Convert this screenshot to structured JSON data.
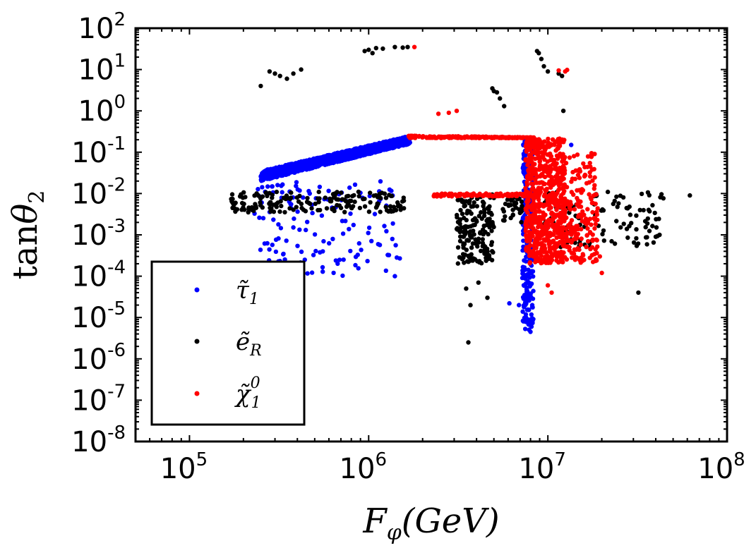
{
  "chart_data": {
    "type": "scatter",
    "title": "",
    "xlabel": "F_φ(GeV)",
    "ylabel": "tanθ_2",
    "xscale": "log",
    "yscale": "log",
    "xlim": [
      50000,
      100000000
    ],
    "ylim": [
      1e-08,
      100
    ],
    "x_ticks": [
      {
        "base": "10",
        "exp": "5",
        "value": 100000
      },
      {
        "base": "10",
        "exp": "6",
        "value": 1000000
      },
      {
        "base": "10",
        "exp": "7",
        "value": 10000000
      },
      {
        "base": "10",
        "exp": "8",
        "value": 100000000
      }
    ],
    "y_ticks": [
      {
        "base": "10",
        "exp": "2",
        "value": 100
      },
      {
        "base": "10",
        "exp": "1",
        "value": 10
      },
      {
        "base": "10",
        "exp": "0",
        "value": 1
      },
      {
        "base": "10",
        "exp": "-1",
        "value": 0.1
      },
      {
        "base": "10",
        "exp": "-2",
        "value": 0.01
      },
      {
        "base": "10",
        "exp": "-3",
        "value": 0.001
      },
      {
        "base": "10",
        "exp": "-4",
        "value": 0.0001
      },
      {
        "base": "10",
        "exp": "-5",
        "value": 1e-05
      },
      {
        "base": "10",
        "exp": "-6",
        "value": 1e-06
      },
      {
        "base": "10",
        "exp": "-7",
        "value": 1e-07
      },
      {
        "base": "10",
        "exp": "-8",
        "value": 1e-08
      }
    ],
    "legend_position": "lower-left",
    "series": [
      {
        "name": "τ̃1",
        "legend": {
          "base": "τ̃",
          "sub": "1",
          "sup": ""
        },
        "color": "#0000ff",
        "clusters": [
          {
            "x_range": [
              250000,
              1700000
            ],
            "y_band": [
              [
                0.02,
                0.035
              ],
              [
                0.16,
                0.25
              ]
            ],
            "count": 1500
          },
          {
            "x_range": [
              230000,
              1500000
            ],
            "y_range": [
              0.0001,
              0.02
            ],
            "count": 140
          },
          {
            "x_range": [
              7200000,
              8300000
            ],
            "y_range": [
              5e-06,
              0.2
            ],
            "count": 260
          }
        ],
        "points": [
          [
            440000,
            0.00025
          ],
          [
            1400000,
            0.0001
          ],
          [
            6100000,
            2.2e-05
          ],
          [
            6900000,
            2e-05
          ],
          [
            8000000,
            4.5e-06
          ],
          [
            8100000,
            6e-06
          ],
          [
            13500000,
            0.15
          ],
          [
            10000000,
            0.04
          ]
        ]
      },
      {
        "name": "ẽR",
        "legend": {
          "base": "ẽ",
          "sub": "R",
          "sup": ""
        },
        "color": "#000000",
        "clusters": [
          {
            "x_range": [
              170000,
              1600000
            ],
            "y_range": [
              0.0035,
              0.011
            ],
            "count": 180
          },
          {
            "x_range": [
              3100000,
              5000000
            ],
            "y_range": [
              0.0002,
              0.01
            ],
            "count": 170
          },
          {
            "x_range": [
              5600000,
              7200000
            ],
            "y_range": [
              0.002,
              0.01
            ],
            "count": 35
          },
          {
            "x_range": [
              9000000,
              45000000
            ],
            "y_range": [
              0.0005,
              0.011
            ],
            "count": 120
          }
        ],
        "points": [
          [
            250000,
            4
          ],
          [
            280000,
            9
          ],
          [
            300000,
            8
          ],
          [
            320000,
            7
          ],
          [
            350000,
            6
          ],
          [
            380000,
            8
          ],
          [
            420000,
            10
          ],
          [
            950000,
            28
          ],
          [
            1000000,
            30
          ],
          [
            1050000,
            25
          ],
          [
            1100000,
            33
          ],
          [
            1200000,
            32
          ],
          [
            1400000,
            35
          ],
          [
            1550000,
            34
          ],
          [
            1650000,
            35
          ],
          [
            4900000,
            3.5
          ],
          [
            5000000,
            3
          ],
          [
            5200000,
            2.8
          ],
          [
            5400000,
            2
          ],
          [
            5700000,
            1.3
          ],
          [
            8700000,
            28
          ],
          [
            8900000,
            25
          ],
          [
            9200000,
            18
          ],
          [
            9500000,
            12
          ],
          [
            10000000,
            9
          ],
          [
            11500000,
            8
          ],
          [
            12000000,
            7
          ],
          [
            12200000,
            1.0
          ],
          [
            3600000,
            2.5e-06
          ],
          [
            3500000,
            5e-05
          ],
          [
            3700000,
            2e-05
          ],
          [
            4100000,
            7e-05
          ],
          [
            4600000,
            3e-05
          ],
          [
            32000000,
            4e-05
          ],
          [
            40000000,
            0.0009
          ],
          [
            42000000,
            0.001
          ],
          [
            62000000,
            0.009
          ]
        ]
      },
      {
        "name": "χ̃01",
        "legend": {
          "base": "χ̃",
          "sub": "1",
          "sup": "0"
        },
        "color": "#ff0000",
        "clusters": [
          {
            "x_range": [
              1650000,
              8500000
            ],
            "y_band": [
              [
                0.22,
                0.25
              ],
              [
                0.22,
                0.23
              ]
            ],
            "count": 200
          },
          {
            "x_range": [
              2300000,
              8000000
            ],
            "y_range": [
              0.0085,
              0.01
            ],
            "count": 120
          },
          {
            "x_range": [
              7500000,
              12500000
            ],
            "y_range": [
              0.0002,
              0.22
            ],
            "count": 650
          },
          {
            "x_range": [
              12000000,
              19000000
            ],
            "y_range": [
              0.0002,
              0.1
            ],
            "count": 200
          }
        ],
        "points": [
          [
            1800000,
            35
          ],
          [
            2450000,
            0.85
          ],
          [
            2800000,
            0.9
          ],
          [
            3100000,
            1.0
          ],
          [
            11500000,
            9.5
          ],
          [
            12500000,
            9
          ],
          [
            12800000,
            9.8
          ],
          [
            20000000,
            0.00012
          ],
          [
            19500000,
            0.0003
          ],
          [
            10500000,
            4e-05
          ],
          [
            10000000,
            6e-05
          ]
        ]
      }
    ]
  }
}
